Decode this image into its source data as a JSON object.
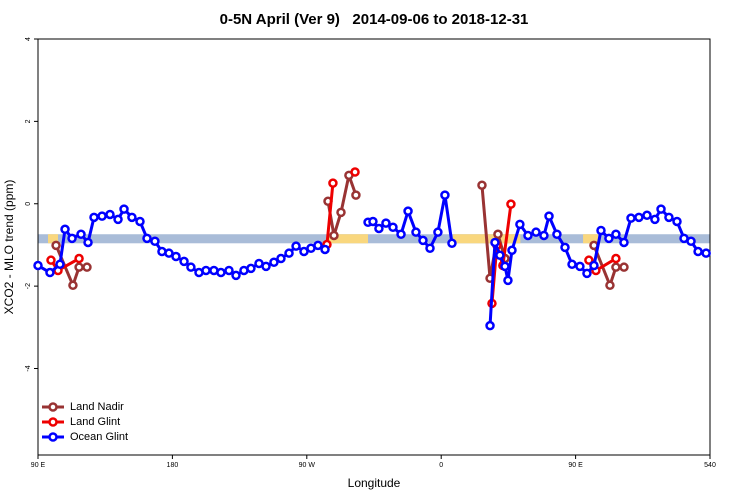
{
  "chart_data": {
    "type": "line",
    "title": "0-5N April (Ver 9)   2014-09-06 to 2018-12-31",
    "xlabel": "Longitude",
    "ylabel": "XCO2 - MLO trend (ppm)",
    "xlim": [
      90,
      540
    ],
    "ylim": [
      -6.1,
      4
    ],
    "xticks": [
      {
        "value": 90,
        "label": "90 E"
      },
      180,
      {
        "value": 270,
        "label": "90 W"
      },
      {
        "value": 360,
        "label": "0"
      },
      {
        "value": 450,
        "label": "90 E"
      },
      540
    ],
    "yticks": [
      -4,
      -2,
      0,
      2,
      4
    ],
    "legend": "bottom-left",
    "band": {
      "ylim": [
        -0.96,
        -0.74
      ],
      "color": "#a9bcd8"
    },
    "highlight": {
      "ranges": [
        [
          96.7,
          103.4
        ],
        [
          284,
          311
        ],
        [
          368,
          413
        ],
        [
          455,
          465
        ]
      ],
      "color": "#f9d77e"
    },
    "series": [
      {
        "name": "Land Nadir",
        "color": "#993333",
        "x": [
          102.1,
          113.4,
          117.5,
          122.8,
          null,
          284.2,
          288.2,
          292.9,
          298.2,
          302.9,
          null,
          387.3,
          392.7,
          398.0,
          402.7,
          null,
          462.3,
          473.0,
          477.0,
          482.4
        ],
        "values": [
          -1.01,
          -1.98,
          -1.54,
          -1.54,
          null,
          0.06,
          -0.77,
          -0.21,
          0.69,
          0.21,
          null,
          0.45,
          -1.81,
          -0.74,
          -1.33,
          null,
          -1.01,
          -1.98,
          -1.54,
          -1.54
        ]
      },
      {
        "name": "Land Glint",
        "color": "#ee0000",
        "x": [
          98.7,
          103.4,
          117.5,
          null,
          283.5,
          287.5,
          null,
          302.3,
          null,
          394.0,
          397.3,
          401.3,
          406.7,
          null,
          458.9,
          463.6,
          477.0
        ],
        "values": [
          -1.37,
          -1.62,
          -1.33,
          null,
          -0.99,
          0.5,
          null,
          0.77,
          null,
          -2.42,
          -1.01,
          -1.5,
          -0.01,
          null,
          -1.37,
          -1.62,
          -1.33
        ]
      },
      {
        "name": "Ocean Glint",
        "color": "#0000ff",
        "x": [
          90,
          98,
          104.7,
          108.1,
          112.8,
          118.8,
          123.5,
          127.5,
          132.9,
          138.2,
          143.6,
          147.6,
          152.9,
          158.3,
          163.0,
          168.3,
          173.0,
          177.7,
          182.4,
          187.8,
          192.4,
          197.8,
          202.5,
          207.8,
          212.5,
          217.9,
          222.6,
          227.9,
          232.6,
          238.0,
          242.7,
          248.0,
          252.7,
          258.1,
          262.8,
          268.1,
          272.8,
          277.5,
          282.2,
          null,
          311.0,
          314.3,
          318.3,
          323.0,
          327.7,
          333.1,
          337.8,
          343.1,
          347.8,
          352.5,
          357.8,
          362.5,
          367.2,
          null,
          392.7,
          396.0,
          399.3,
          402.7,
          404.7,
          407.4,
          412.7,
          418.1,
          423.5,
          428.8,
          432.2,
          437.5,
          442.9,
          447.6,
          452.9,
          457.6,
          462.3,
          467.0,
          472.3,
          477.0,
          482.4,
          487.1,
          492.4,
          497.8,
          503.1,
          507.2,
          512.5,
          517.9,
          522.6,
          527.3,
          532.0,
          537.4
        ],
        "values": [
          -1.5,
          -1.67,
          -1.47,
          -0.62,
          -0.84,
          -0.74,
          -0.94,
          -0.33,
          -0.3,
          -0.26,
          -0.38,
          -0.13,
          -0.33,
          -0.43,
          -0.84,
          -0.91,
          -1.16,
          -1.2,
          -1.28,
          -1.4,
          -1.54,
          -1.67,
          -1.62,
          -1.62,
          -1.67,
          -1.62,
          -1.74,
          -1.62,
          -1.57,
          -1.45,
          -1.52,
          -1.42,
          -1.33,
          -1.2,
          -1.03,
          -1.16,
          -1.08,
          -1.01,
          -1.11,
          null,
          -0.45,
          -0.43,
          -0.6,
          -0.47,
          -0.57,
          -0.74,
          -0.18,
          -0.69,
          -0.89,
          -1.08,
          -0.69,
          0.21,
          -0.96,
          null,
          -2.96,
          -0.94,
          -1.25,
          -1.52,
          -1.86,
          -1.13,
          -0.5,
          -0.77,
          -0.69,
          -0.77,
          -0.3,
          -0.74,
          -1.06,
          -1.47,
          -1.52,
          -1.69,
          -1.5,
          -0.65,
          -0.84,
          -0.74,
          -0.94,
          -0.35,
          -0.33,
          -0.28,
          -0.38,
          -0.13,
          -0.33,
          -0.43,
          -0.84,
          -0.91,
          -1.16,
          -1.2
        ]
      }
    ]
  }
}
